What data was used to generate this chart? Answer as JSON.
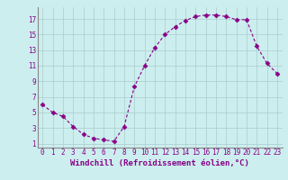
{
  "x": [
    0,
    1,
    2,
    3,
    4,
    5,
    6,
    7,
    8,
    9,
    10,
    11,
    12,
    13,
    14,
    15,
    16,
    17,
    18,
    19,
    20,
    21,
    22,
    23
  ],
  "y": [
    6.0,
    5.0,
    4.5,
    3.2,
    2.2,
    1.7,
    1.5,
    1.3,
    3.2,
    8.3,
    11.0,
    13.3,
    15.0,
    16.0,
    16.8,
    17.3,
    17.5,
    17.5,
    17.3,
    16.9,
    16.9,
    13.5,
    11.3,
    10.0
  ],
  "line_color": "#880088",
  "marker": "D",
  "marker_size": 2.5,
  "bg_color": "#cceeee",
  "grid_color": "#aacccc",
  "xlabel": "Windchill (Refroidissement éolien,°C)",
  "xlabel_fontsize": 6.5,
  "tick_color": "#880088",
  "tick_fontsize": 5.5,
  "yticks": [
    1,
    3,
    5,
    7,
    9,
    11,
    13,
    15,
    17
  ],
  "xticks": [
    0,
    1,
    2,
    3,
    4,
    5,
    6,
    7,
    8,
    9,
    10,
    11,
    12,
    13,
    14,
    15,
    16,
    17,
    18,
    19,
    20,
    21,
    22,
    23
  ],
  "xlim": [
    -0.5,
    23.5
  ],
  "ylim": [
    0.5,
    18.5
  ]
}
